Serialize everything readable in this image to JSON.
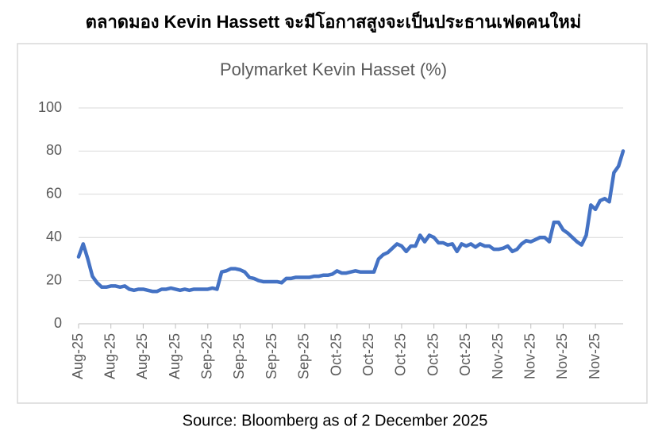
{
  "chart_data": {
    "type": "line",
    "title": "ตลาดมอง Kevin Hassett จะมีโอกาสสูงจะเป็นประธานเฟดคนใหม่",
    "subtitle": "Polymarket Kevin Hasset (%)",
    "source": "Source: Bloomberg as of 2 December 2025",
    "categories": [
      "Aug-25",
      null,
      null,
      null,
      null,
      null,
      null,
      "Aug-25",
      null,
      null,
      null,
      null,
      null,
      null,
      "Aug-25",
      null,
      null,
      null,
      null,
      null,
      null,
      "Aug-25",
      null,
      null,
      null,
      null,
      null,
      null,
      "Sep-25",
      null,
      null,
      null,
      null,
      null,
      null,
      "Sep-25",
      null,
      null,
      null,
      null,
      null,
      null,
      "Sep-25",
      null,
      null,
      null,
      null,
      null,
      null,
      "Sep-25",
      null,
      null,
      null,
      null,
      null,
      null,
      "Oct-25",
      null,
      null,
      null,
      null,
      null,
      null,
      "Oct-25",
      null,
      null,
      null,
      null,
      null,
      null,
      "Oct-25",
      null,
      null,
      null,
      null,
      null,
      null,
      "Oct-25",
      null,
      null,
      null,
      null,
      null,
      null,
      "Oct-25",
      null,
      null,
      null,
      null,
      null,
      null,
      "Nov-25",
      null,
      null,
      null,
      null,
      null,
      null,
      "Nov-25",
      null,
      null,
      null,
      null,
      null,
      null,
      "Nov-25",
      null,
      null,
      null,
      null,
      null,
      null,
      "Nov-25",
      null,
      null,
      null,
      null,
      null,
      null
    ],
    "values": [
      31,
      37,
      30,
      22,
      19,
      17,
      17,
      17.5,
      17.5,
      17,
      17.5,
      16,
      15.5,
      16,
      16,
      15.5,
      15,
      15,
      16,
      16,
      16.5,
      16,
      15.5,
      16,
      15.5,
      16,
      16,
      16,
      16,
      16.5,
      16,
      24,
      24.5,
      25.5,
      25.5,
      25,
      24,
      21.5,
      21,
      20,
      19.5,
      19.5,
      19.5,
      19.5,
      19,
      21,
      21,
      21.5,
      21.5,
      21.5,
      21.5,
      22,
      22,
      22.5,
      22.5,
      23,
      24.5,
      23.5,
      23.5,
      24,
      24.5,
      24,
      24,
      24,
      24,
      30,
      32,
      33,
      35,
      37,
      36,
      33.5,
      36,
      36,
      41,
      38,
      41,
      40,
      37.5,
      37.5,
      36.5,
      37,
      33.5,
      37,
      36,
      37,
      35.5,
      37,
      36,
      36,
      34.5,
      34.5,
      35,
      36,
      33.5,
      34.5,
      37,
      38.5,
      38,
      39,
      40,
      40,
      38,
      47,
      47,
      43.5,
      42,
      40,
      38,
      36.5,
      41,
      55,
      53,
      57,
      58,
      56.5,
      70,
      73,
      80
    ],
    "color": "#4472c4",
    "ylim": [
      0,
      100
    ],
    "yticks": [
      0,
      20,
      40,
      60,
      80,
      100
    ],
    "grid": true
  }
}
